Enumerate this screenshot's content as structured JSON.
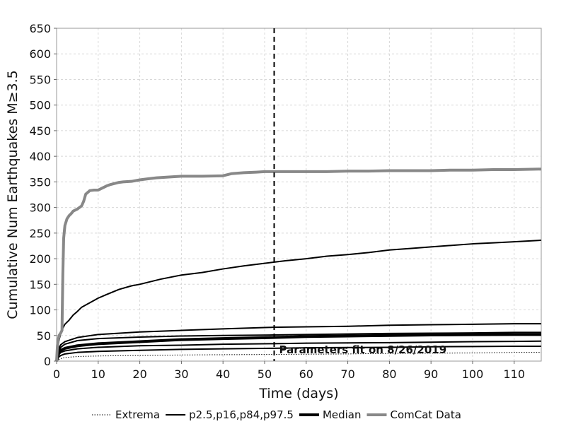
{
  "chart_data": {
    "type": "line",
    "xlabel": "Time (days)",
    "ylabel": "Cumulative Num Earthquakes M≥3.5",
    "xlim": [
      0,
      116.5
    ],
    "ylim": [
      0,
      650
    ],
    "xticks": [
      0,
      10,
      20,
      30,
      40,
      50,
      60,
      70,
      80,
      90,
      100,
      110
    ],
    "yticks": [
      0,
      50,
      100,
      150,
      200,
      250,
      300,
      350,
      400,
      450,
      500,
      550,
      600,
      650
    ],
    "grid": true,
    "legend_position": "bottom",
    "annotation": {
      "text": "Parameters fit on 8/26/2019",
      "x": 52.3,
      "line_style": "dashed"
    },
    "legend": [
      {
        "label": "Extrema",
        "style": "dotted",
        "color": "#000000"
      },
      {
        "label": "p2.5,p16,p84,p97.5",
        "style": "thin",
        "color": "#000000"
      },
      {
        "label": "Median",
        "style": "thick",
        "color": "#000000"
      },
      {
        "label": "ComCat Data",
        "style": "thick",
        "color": "#888888"
      }
    ],
    "series": [
      {
        "group": "Extrema",
        "color": "#000000",
        "points": [
          [
            0,
            0
          ],
          [
            0.5,
            3
          ],
          [
            1,
            5
          ],
          [
            2,
            7
          ],
          [
            5,
            9
          ],
          [
            10,
            10
          ],
          [
            20,
            11
          ],
          [
            30,
            12
          ],
          [
            40,
            12.5
          ],
          [
            52,
            13
          ],
          [
            60,
            13.5
          ],
          [
            70,
            14
          ],
          [
            80,
            15
          ],
          [
            90,
            15.5
          ],
          [
            100,
            16
          ],
          [
            110,
            17
          ],
          [
            116.5,
            17
          ]
        ]
      },
      {
        "group": "p2.5,p16,p84,p97.5",
        "color": "#000000",
        "points": [
          [
            0,
            0
          ],
          [
            0.5,
            8
          ],
          [
            1,
            11
          ],
          [
            2,
            14
          ],
          [
            5,
            17
          ],
          [
            10,
            19
          ],
          [
            20,
            21
          ],
          [
            30,
            23
          ],
          [
            40,
            24
          ],
          [
            52,
            25
          ],
          [
            60,
            26
          ],
          [
            70,
            26.5
          ],
          [
            80,
            27
          ],
          [
            90,
            28
          ],
          [
            100,
            28.5
          ],
          [
            110,
            29
          ],
          [
            116.5,
            29
          ]
        ]
      },
      {
        "group": "p2.5,p16,p84,p97.5",
        "color": "#000000",
        "points": [
          [
            0,
            0
          ],
          [
            0.5,
            12
          ],
          [
            1,
            17
          ],
          [
            2,
            20
          ],
          [
            5,
            24
          ],
          [
            10,
            27
          ],
          [
            20,
            30
          ],
          [
            30,
            31
          ],
          [
            40,
            33
          ],
          [
            52,
            34
          ],
          [
            60,
            35
          ],
          [
            70,
            35.5
          ],
          [
            80,
            36
          ],
          [
            90,
            37
          ],
          [
            100,
            38
          ],
          [
            110,
            38.5
          ],
          [
            116.5,
            39
          ]
        ]
      },
      {
        "group": "Median",
        "color": "#000000",
        "points": [
          [
            0,
            0
          ],
          [
            0.5,
            16
          ],
          [
            1,
            21
          ],
          [
            2,
            25
          ],
          [
            5,
            30
          ],
          [
            10,
            34
          ],
          [
            20,
            38
          ],
          [
            30,
            42
          ],
          [
            40,
            44
          ],
          [
            52,
            46
          ],
          [
            60,
            48
          ],
          [
            70,
            49
          ],
          [
            80,
            50
          ],
          [
            90,
            51
          ],
          [
            100,
            51.5
          ],
          [
            110,
            52
          ],
          [
            116.5,
            52
          ]
        ]
      },
      {
        "group": "p2.5,p16,p84,p97.5",
        "color": "#000000",
        "points": [
          [
            0,
            0
          ],
          [
            0.5,
            20
          ],
          [
            1,
            27
          ],
          [
            2,
            33
          ],
          [
            5,
            40
          ],
          [
            10,
            44
          ],
          [
            20,
            47
          ],
          [
            30,
            49
          ],
          [
            40,
            50
          ],
          [
            52,
            51
          ],
          [
            60,
            52
          ],
          [
            70,
            53
          ],
          [
            80,
            54
          ],
          [
            90,
            54.5
          ],
          [
            100,
            55
          ],
          [
            110,
            56
          ],
          [
            116.5,
            56
          ]
        ]
      },
      {
        "group": "p2.5,p16,p84,p97.5",
        "color": "#000000",
        "points": [
          [
            0,
            0
          ],
          [
            0.5,
            25
          ],
          [
            1,
            32
          ],
          [
            2,
            38
          ],
          [
            5,
            46
          ],
          [
            10,
            52
          ],
          [
            20,
            57
          ],
          [
            30,
            60
          ],
          [
            40,
            63
          ],
          [
            52,
            66
          ],
          [
            60,
            67
          ],
          [
            70,
            68
          ],
          [
            80,
            70
          ],
          [
            90,
            71
          ],
          [
            100,
            72
          ],
          [
            110,
            73
          ],
          [
            116.5,
            73
          ]
        ]
      },
      {
        "group": "p2.5,p16,p84,p97.5",
        "color": "#000000",
        "points": [
          [
            0,
            0
          ],
          [
            0.3,
            30
          ],
          [
            0.7,
            45
          ],
          [
            1.2,
            60
          ],
          [
            2,
            72
          ],
          [
            3,
            80
          ],
          [
            4,
            90
          ],
          [
            5,
            97
          ],
          [
            6,
            105
          ],
          [
            8,
            114
          ],
          [
            10,
            123
          ],
          [
            12,
            130
          ],
          [
            15,
            140
          ],
          [
            18,
            147
          ],
          [
            20,
            150
          ],
          [
            25,
            160
          ],
          [
            30,
            168
          ],
          [
            35,
            173
          ],
          [
            40,
            180
          ],
          [
            45,
            186
          ],
          [
            52,
            193
          ],
          [
            55,
            196
          ],
          [
            60,
            200
          ],
          [
            65,
            205
          ],
          [
            70,
            208
          ],
          [
            75,
            212
          ],
          [
            80,
            217
          ],
          [
            85,
            220
          ],
          [
            90,
            223
          ],
          [
            95,
            226
          ],
          [
            100,
            229
          ],
          [
            105,
            231
          ],
          [
            110,
            233
          ],
          [
            116.5,
            236
          ]
        ]
      },
      {
        "group": "ComCat Data",
        "color": "#888888",
        "points": [
          [
            0,
            0
          ],
          [
            0.2,
            30
          ],
          [
            0.4,
            42
          ],
          [
            0.6,
            50
          ],
          [
            1,
            55
          ],
          [
            1.3,
            60
          ],
          [
            1.5,
            170
          ],
          [
            1.7,
            240
          ],
          [
            2,
            265
          ],
          [
            2.5,
            278
          ],
          [
            3,
            284
          ],
          [
            3.5,
            288
          ],
          [
            4,
            293
          ],
          [
            5,
            297
          ],
          [
            6,
            303
          ],
          [
            6.5,
            312
          ],
          [
            7,
            326
          ],
          [
            8,
            333
          ],
          [
            9,
            334
          ],
          [
            10,
            334
          ],
          [
            11,
            338
          ],
          [
            12,
            342
          ],
          [
            13,
            345
          ],
          [
            14,
            347
          ],
          [
            15,
            349
          ],
          [
            16,
            350
          ],
          [
            18,
            351
          ],
          [
            20,
            354
          ],
          [
            22,
            356
          ],
          [
            24,
            358
          ],
          [
            26,
            359
          ],
          [
            28,
            360
          ],
          [
            30,
            361
          ],
          [
            35,
            361
          ],
          [
            40,
            362
          ],
          [
            42,
            366
          ],
          [
            45,
            368
          ],
          [
            48,
            369
          ],
          [
            50,
            370
          ],
          [
            52,
            370
          ],
          [
            55,
            370
          ],
          [
            60,
            370
          ],
          [
            65,
            370
          ],
          [
            70,
            371
          ],
          [
            75,
            371
          ],
          [
            80,
            372
          ],
          [
            85,
            372
          ],
          [
            90,
            372
          ],
          [
            95,
            373
          ],
          [
            100,
            373
          ],
          [
            105,
            374
          ],
          [
            110,
            374
          ],
          [
            116.5,
            375
          ]
        ]
      }
    ]
  }
}
